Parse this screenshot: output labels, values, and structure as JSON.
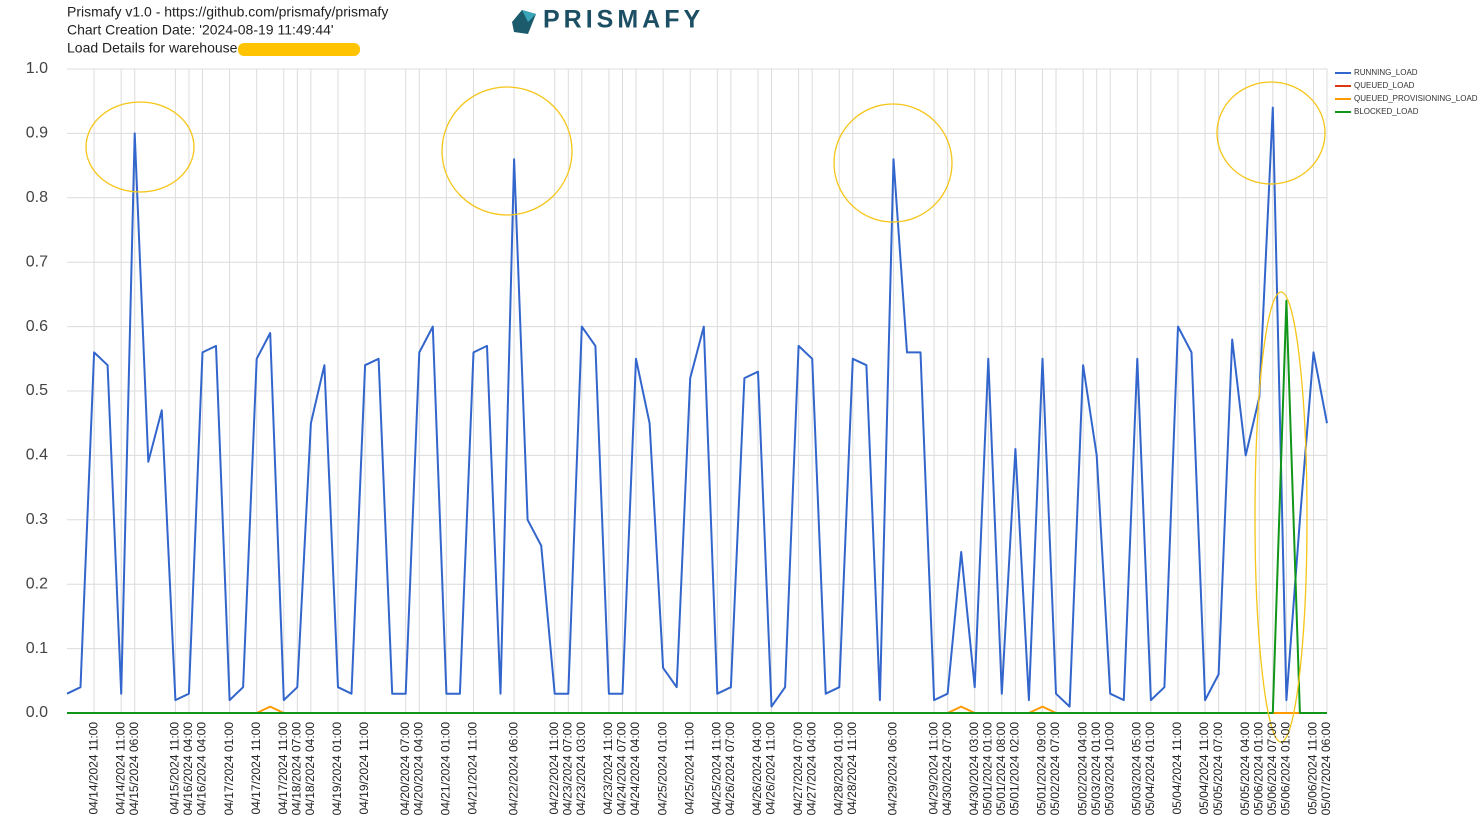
{
  "header": {
    "lines": [
      "Prismafy v1.0 - https://github.com/prismafy/prismafy",
      "Chart Creation Date: '2024-08-19 11:49:44'",
      "Load Details for warehouse"
    ],
    "logo": "PRISMAFY"
  },
  "chart_data": {
    "type": "line",
    "categories": [
      null,
      null,
      "04/14/2024 11:00",
      null,
      "04/14/2024 11:00",
      "04/15/2024 06:00",
      null,
      null,
      "04/15/2024 11:00",
      "04/16/2024 04:00",
      "04/16/2024 04:00",
      null,
      "04/17/2024 01:00",
      null,
      "04/17/2024 11:00",
      null,
      "04/17/2024 11:00",
      "04/18/2024 07:00",
      "04/18/2024 04:00",
      null,
      "04/19/2024 01:00",
      null,
      "04/19/2024 11:00",
      null,
      null,
      "04/20/2024 07:00",
      "04/20/2024 04:00",
      null,
      "04/21/2024 01:00",
      null,
      "04/21/2024 11:00",
      null,
      null,
      "04/22/2024 06:00",
      null,
      null,
      "04/22/2024 11:00",
      "04/23/2024 07:00",
      "04/23/2024 03:00",
      null,
      "04/23/2024 11:00",
      "04/24/2024 07:00",
      "04/24/2024 04:00",
      null,
      "04/25/2024 01:00",
      null,
      "04/25/2024 11:00",
      null,
      "04/25/2024 11:00",
      "04/26/2024 07:00",
      null,
      "04/26/2024 04:00",
      "04/26/2024 11:00",
      null,
      "04/27/2024 07:00",
      "04/27/2024 04:00",
      null,
      "04/28/2024 01:00",
      "04/28/2024 11:00",
      null,
      null,
      "04/29/2024 06:00",
      null,
      null,
      "04/29/2024 11:00",
      "04/30/2024 07:00",
      null,
      "04/30/2024 03:00",
      "05/01/2024 01:00",
      "05/01/2024 08:00",
      "05/01/2024 02:00",
      null,
      "05/01/2024 09:00",
      "05/02/2024 07:00",
      null,
      "05/02/2024 04:00",
      "05/03/2024 01:00",
      "05/03/2024 10:00",
      null,
      "05/03/2024 05:00",
      "05/04/2024 01:00",
      null,
      "05/04/2024 11:00",
      null,
      "05/04/2024 11:00",
      "05/05/2024 07:00",
      null,
      "05/05/2024 04:00",
      "05/06/2024 01:00",
      "05/06/2024 07:00",
      "05/06/2024 01:00",
      null,
      "05/06/2024 11:00",
      "05/07/2024 06:00"
    ],
    "series": [
      {
        "name": "RUNNING_LOAD",
        "color": "#3366cc",
        "values": [
          0.03,
          0.04,
          0.56,
          0.54,
          0.03,
          0.9,
          0.39,
          0.47,
          0.02,
          0.03,
          0.56,
          0.57,
          0.02,
          0.04,
          0.55,
          0.59,
          0.02,
          0.04,
          0.45,
          0.54,
          0.04,
          0.03,
          0.54,
          0.55,
          0.03,
          0.03,
          0.56,
          0.6,
          0.03,
          0.03,
          0.56,
          0.57,
          0.03,
          0.86,
          0.3,
          0.26,
          0.03,
          0.03,
          0.6,
          0.57,
          0.03,
          0.03,
          0.55,
          0.45,
          0.07,
          0.04,
          0.52,
          0.6,
          0.03,
          0.04,
          0.52,
          0.53,
          0.01,
          0.04,
          0.57,
          0.55,
          0.03,
          0.04,
          0.55,
          0.54,
          0.02,
          0.86,
          0.56,
          0.56,
          0.02,
          0.03,
          0.25,
          0.04,
          0.55,
          0.03,
          0.41,
          0.02,
          0.55,
          0.03,
          0.01,
          0.54,
          0.4,
          0.03,
          0.02,
          0.55,
          0.02,
          0.04,
          0.6,
          0.56,
          0.02,
          0.06,
          0.58,
          0.4,
          0.49,
          0.94,
          0.02,
          0.3,
          0.56,
          0.45
        ]
      },
      {
        "name": "QUEUED_LOAD",
        "color": "#dc3912",
        "values": [
          0,
          0,
          0,
          0,
          0,
          0,
          0,
          0,
          0,
          0,
          0,
          0,
          0,
          0,
          0,
          0,
          0,
          0,
          0,
          0,
          0,
          0,
          0,
          0,
          0,
          0,
          0,
          0,
          0,
          0,
          0,
          0,
          0,
          0,
          0,
          0,
          0,
          0,
          0,
          0,
          0,
          0,
          0,
          0,
          0,
          0,
          0,
          0,
          0,
          0,
          0,
          0,
          0,
          0,
          0,
          0,
          0,
          0,
          0,
          0,
          0,
          0,
          0,
          0,
          0,
          0,
          0,
          0,
          0,
          0,
          0,
          0,
          0,
          0,
          0,
          0,
          0,
          0,
          0,
          0,
          0,
          0,
          0,
          0,
          0,
          0,
          0,
          0,
          0,
          0,
          0,
          0,
          0,
          0
        ]
      },
      {
        "name": "QUEUED_PROVISIONING_LOAD",
        "color": "#ff9900",
        "values": [
          0,
          0,
          0,
          0,
          0,
          0,
          0,
          0,
          0,
          0,
          0,
          0,
          0,
          0,
          0,
          0.01,
          0,
          0,
          0,
          0,
          0,
          0,
          0,
          0,
          0,
          0,
          0,
          0,
          0,
          0,
          0,
          0,
          0,
          0,
          0,
          0,
          0,
          0,
          0,
          0,
          0,
          0,
          0,
          0,
          0,
          0,
          0,
          0,
          0,
          0,
          0,
          0,
          0,
          0,
          0,
          0,
          0,
          0,
          0,
          0,
          0,
          0,
          0,
          0,
          0,
          0,
          0.01,
          0,
          0,
          0,
          0,
          0,
          0.01,
          0,
          0,
          0,
          0,
          0,
          0,
          0,
          0,
          0,
          0,
          0,
          0,
          0,
          0,
          0,
          0,
          0,
          0,
          0,
          0,
          0
        ]
      },
      {
        "name": "BLOCKED_LOAD",
        "color": "#109618",
        "values": [
          0,
          0,
          0,
          0,
          0,
          0,
          0,
          0,
          0,
          0,
          0,
          0,
          0,
          0,
          0,
          0,
          0,
          0,
          0,
          0,
          0,
          0,
          0,
          0,
          0,
          0,
          0,
          0,
          0,
          0,
          0,
          0,
          0,
          0,
          0,
          0,
          0,
          0,
          0,
          0,
          0,
          0,
          0,
          0,
          0,
          0,
          0,
          0,
          0,
          0,
          0,
          0,
          0,
          0,
          0,
          0,
          0,
          0,
          0,
          0,
          0,
          0,
          0,
          0,
          0,
          0,
          0,
          0,
          0,
          0,
          0,
          0,
          0,
          0,
          0,
          0,
          0,
          0,
          0,
          0,
          0,
          0,
          0,
          0,
          0,
          0,
          0,
          0,
          0,
          0,
          0.64,
          0,
          0,
          0
        ]
      }
    ],
    "ylim": [
      0,
      1
    ],
    "yticks": [
      {
        "value": 0,
        "label": "0.0"
      },
      0.1,
      0.2,
      0.3,
      0.4,
      0.5,
      0.6,
      0.7,
      0.8,
      0.9,
      {
        "value": 1,
        "label": "1.0"
      }
    ],
    "grid": true,
    "legend": "top-right"
  }
}
